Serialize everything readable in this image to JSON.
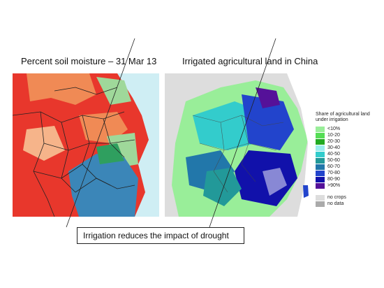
{
  "titles": {
    "left": "Percent soil moisture – 31 Mar 13",
    "right": "Irrigated agricultural land in China"
  },
  "legend": {
    "title": "Share of agricultural land under irrigation",
    "items": [
      {
        "label": "<10%",
        "color": "#99ee99"
      },
      {
        "label": "10-20",
        "color": "#55dd55"
      },
      {
        "label": "20-30",
        "color": "#22aa22"
      },
      {
        "label": "30-40",
        "color": "#99eeee"
      },
      {
        "label": "40-50",
        "color": "#33cccc"
      },
      {
        "label": "50-60",
        "color": "#229999"
      },
      {
        "label": "60-70",
        "color": "#2277aa"
      },
      {
        "label": "70-80",
        "color": "#2244cc"
      },
      {
        "label": "80-90",
        "color": "#1111aa"
      },
      {
        "label": ">90%",
        "color": "#551199"
      }
    ],
    "extra": [
      {
        "label": "no crops",
        "color": "#dddddd"
      },
      {
        "label": "no data",
        "color": "#aaaaaa"
      }
    ]
  },
  "callout": "Irrigation reduces the impact of drought",
  "colors": {
    "dry": "#e8372c",
    "dry_orange": "#f08a55",
    "wet": "#3b86b8",
    "sea": "#cfeef4"
  }
}
